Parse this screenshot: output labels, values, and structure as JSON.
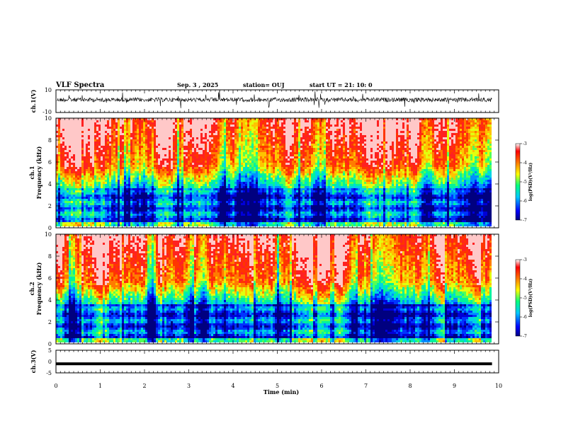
{
  "header": {
    "title": "VLF Spectra",
    "date": "Sep. 3 , 2025",
    "station": "station= OUJ",
    "start": "start  UT =   21: 10: 0"
  },
  "chart_data": [
    {
      "type": "line",
      "name": "ch1-waveform",
      "ylabel": "ch.1(V)",
      "ylim": [
        -10,
        10
      ],
      "yticks": [
        "10",
        "-10"
      ],
      "xlim": [
        0,
        10
      ]
    },
    {
      "type": "heatmap",
      "name": "ch1-spectrogram",
      "ylabel_line1": "ch.1",
      "ylabel_line2": "Frequency (kHz)",
      "ylim": [
        0,
        10
      ],
      "yticks": [
        "0",
        "2",
        "4",
        "6",
        "8",
        "10"
      ],
      "xlim": [
        0,
        10
      ],
      "data_until_min": 9.85,
      "colorbar": {
        "label": "log(PSD)(V²/Hz)",
        "range": [
          -7,
          -3
        ],
        "ticks": [
          "-3",
          "-4",
          "-5",
          "-6",
          "-7"
        ]
      }
    },
    {
      "type": "heatmap",
      "name": "ch2-spectrogram",
      "ylabel_line1": "ch.2",
      "ylabel_line2": "Frequency (kHz)",
      "ylim": [
        0,
        10
      ],
      "yticks": [
        "0",
        "2",
        "4",
        "6",
        "8",
        "10"
      ],
      "xlim": [
        0,
        10
      ],
      "data_until_min": 9.85,
      "colorbar": {
        "label": "log(PSD)(V²/Hz)",
        "range": [
          -7,
          -3
        ],
        "ticks": [
          "-3",
          "-4",
          "-5",
          "-6",
          "-7"
        ]
      }
    },
    {
      "type": "line",
      "name": "ch3-waveform",
      "ylabel": "ch.3(V)",
      "ylim": [
        -5,
        5
      ],
      "yticks": [
        "5",
        "0",
        "-5"
      ],
      "level": -1,
      "xlim": [
        0,
        10
      ]
    }
  ],
  "xaxis": {
    "label": "Time (min)",
    "ticks": [
      "0",
      "1",
      "2",
      "3",
      "4",
      "5",
      "6",
      "7",
      "8",
      "9",
      "10"
    ]
  }
}
